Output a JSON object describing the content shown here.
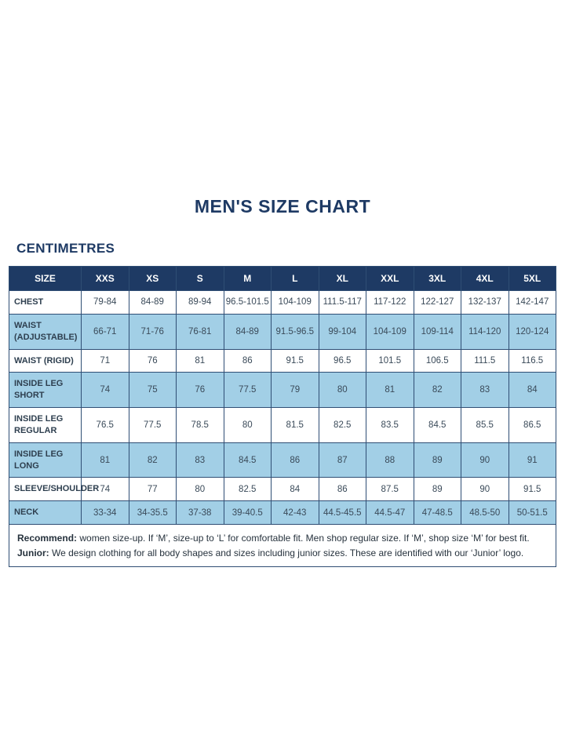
{
  "page": {
    "title": "MEN'S SIZE CHART",
    "unit_label": "CENTIMETRES"
  },
  "colors": {
    "navy": "#1e3a64",
    "light_blue": "#a2cfe6",
    "grid": "#2f4e74"
  },
  "chart_data": {
    "type": "table",
    "title": "MEN'S SIZE CHART",
    "unit": "CENTIMETRES",
    "headers": [
      "SIZE",
      "XXS",
      "XS",
      "S",
      "M",
      "L",
      "XL",
      "XXL",
      "3XL",
      "4XL",
      "5XL"
    ],
    "rows": [
      {
        "label": "CHEST",
        "values": [
          "79-84",
          "84-89",
          "89-94",
          "96.5-101.5",
          "104-109",
          "111.5-117",
          "117-122",
          "122-127",
          "132-137",
          "142-147"
        ]
      },
      {
        "label": "WAIST (ADJUSTABLE)",
        "values": [
          "66-71",
          "71-76",
          "76-81",
          "84-89",
          "91.5-96.5",
          "99-104",
          "104-109",
          "109-114",
          "114-120",
          "120-124"
        ]
      },
      {
        "label": "WAIST (RIGID)",
        "values": [
          "71",
          "76",
          "81",
          "86",
          "91.5",
          "96.5",
          "101.5",
          "106.5",
          "111.5",
          "116.5"
        ]
      },
      {
        "label": "INSIDE LEG SHORT",
        "values": [
          "74",
          "75",
          "76",
          "77.5",
          "79",
          "80",
          "81",
          "82",
          "83",
          "84"
        ]
      },
      {
        "label": "INSIDE LEG REGULAR",
        "values": [
          "76.5",
          "77.5",
          "78.5",
          "80",
          "81.5",
          "82.5",
          "83.5",
          "84.5",
          "85.5",
          "86.5"
        ]
      },
      {
        "label": "INSIDE LEG LONG",
        "values": [
          "81",
          "82",
          "83",
          "84.5",
          "86",
          "87",
          "88",
          "89",
          "90",
          "91"
        ]
      },
      {
        "label": "SLEEVE/SHOULDER",
        "values": [
          "74",
          "77",
          "80",
          "82.5",
          "84",
          "86",
          "87.5",
          "89",
          "90",
          "91.5"
        ]
      },
      {
        "label": "NECK",
        "values": [
          "33-34",
          "34-35.5",
          "37-38",
          "39-40.5",
          "42-43",
          "44.5-45.5",
          "44.5-47",
          "47-48.5",
          "48.5-50",
          "50-51.5"
        ]
      }
    ]
  },
  "footer": {
    "recommend_label": "Recommend:",
    "recommend_text": " women size-up. If ‘M’, size-up to ‘L’ for comfortable fit. Men shop regular size. If ‘M’, shop size ‘M’ for best fit.",
    "junior_label": "Junior:",
    "junior_text": " We design clothing for all body shapes and sizes including junior sizes. These are identified with our ‘Junior’ logo."
  }
}
